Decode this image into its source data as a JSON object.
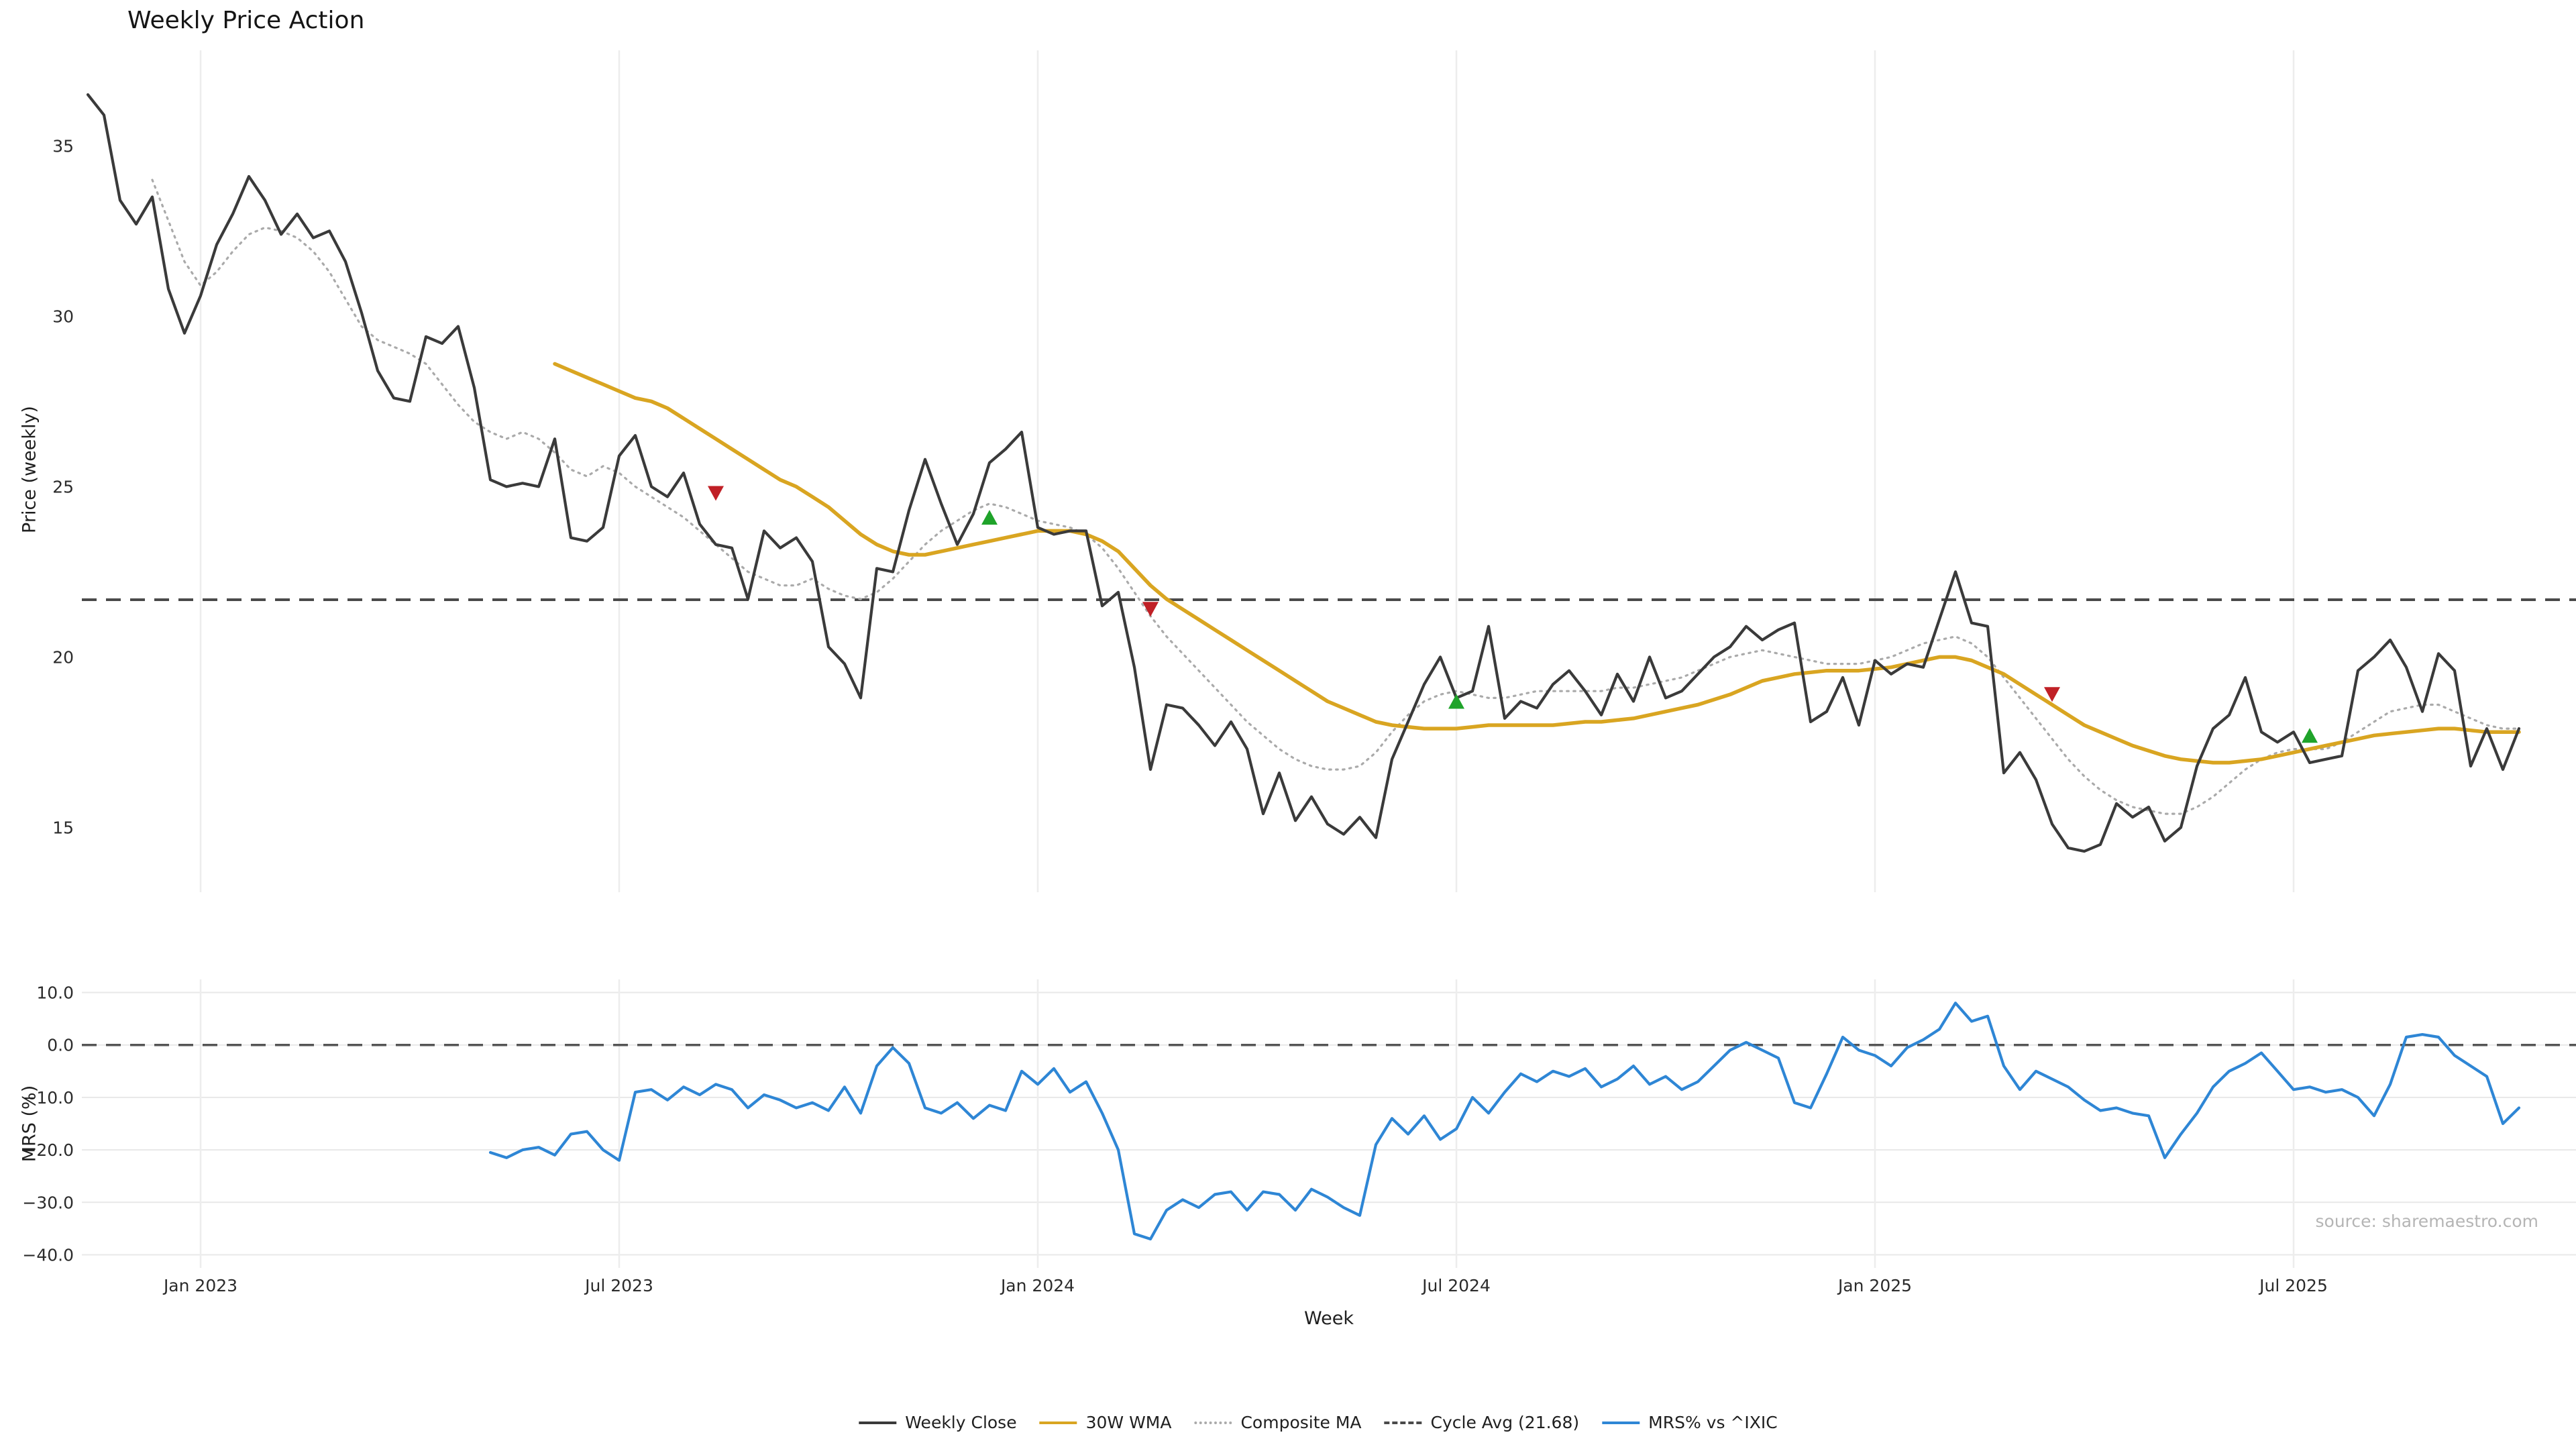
{
  "source": "source: sharemaestro.com",
  "colors": {
    "close": "#3a3a3a",
    "wma": "#d9a521",
    "composite": "#aaaaaa",
    "cycle_avg": "#4a4a4a",
    "mrs": "#2e86d5",
    "buy": "#1fa32a",
    "sell": "#c02026",
    "grid_vertical": "#ededed",
    "grid_horizontal": "#e8e8e8",
    "tick_text": "#2b2b2b",
    "zero_line": "#555555"
  },
  "legend": {
    "items": [
      {
        "label": "Weekly Close",
        "color": "#3a3a3a",
        "style": "solid"
      },
      {
        "label": "30W WMA",
        "color": "#d9a521",
        "style": "solid"
      },
      {
        "label": "Composite MA",
        "color": "#aaaaaa",
        "style": "dotted"
      },
      {
        "label": "Cycle Avg (21.68)",
        "color": "#4a4a4a",
        "style": "dashed"
      },
      {
        "label": "MRS% vs ^IXIC",
        "color": "#2e86d5",
        "style": "solid"
      }
    ]
  },
  "chart_data": [
    {
      "type": "line",
      "title": "Weekly Price Action",
      "ylabel": "Price (weekly)",
      "ylim": [
        13.1,
        37.8
      ],
      "grid": "vertical-only",
      "cycle_avg": 21.68,
      "x_ticks": [
        {
          "week": 7,
          "label": "Jan 2023"
        },
        {
          "week": 33,
          "label": "Jul 2023"
        },
        {
          "week": 59,
          "label": "Jan 2024"
        },
        {
          "week": 85,
          "label": "Jul 2024"
        },
        {
          "week": 111,
          "label": "Jan 2025"
        },
        {
          "week": 137,
          "label": "Jul 2025"
        }
      ],
      "y_ticks": [
        {
          "value": 15,
          "label": "15"
        },
        {
          "value": 20,
          "label": "20"
        },
        {
          "value": 25,
          "label": "25"
        },
        {
          "value": 30,
          "label": "30"
        },
        {
          "value": 35,
          "label": "35"
        }
      ],
      "series": [
        {
          "name": "Weekly Close",
          "start_week": 0,
          "values": [
            36.5,
            35.9,
            33.4,
            32.7,
            33.5,
            30.8,
            29.5,
            30.6,
            32.1,
            33.0,
            34.1,
            33.4,
            32.4,
            33.0,
            32.3,
            32.5,
            31.6,
            30.1,
            28.4,
            27.6,
            27.5,
            29.4,
            29.2,
            29.7,
            27.9,
            25.2,
            25.0,
            25.1,
            25.0,
            26.4,
            23.5,
            23.4,
            23.8,
            25.9,
            26.5,
            25.0,
            24.7,
            25.4,
            23.9,
            23.3,
            23.2,
            21.7,
            23.7,
            23.2,
            23.5,
            22.8,
            20.3,
            19.8,
            18.8,
            22.6,
            22.5,
            24.3,
            25.8,
            24.5,
            23.3,
            24.2,
            25.7,
            26.1,
            26.6,
            23.8,
            23.6,
            23.7,
            23.7,
            21.5,
            21.9,
            19.7,
            16.7,
            18.6,
            18.5,
            18.0,
            17.4,
            18.1,
            17.3,
            15.4,
            16.6,
            15.2,
            15.9,
            15.1,
            14.8,
            15.3,
            14.7,
            17.0,
            18.1,
            19.2,
            20.0,
            18.8,
            19.0,
            20.9,
            18.2,
            18.7,
            18.5,
            19.2,
            19.6,
            19.0,
            18.3,
            19.5,
            18.7,
            20.0,
            18.8,
            19.0,
            19.5,
            20.0,
            20.3,
            20.9,
            20.5,
            20.8,
            21.0,
            18.1,
            18.4,
            19.4,
            18.0,
            19.9,
            19.5,
            19.8,
            19.7,
            21.1,
            22.5,
            21.0,
            20.9,
            16.6,
            17.2,
            16.4,
            15.1,
            14.4,
            14.3,
            14.5,
            15.7,
            15.3,
            15.6,
            14.6,
            15.0,
            16.8,
            17.9,
            18.3,
            19.4,
            17.8,
            17.5,
            17.8,
            16.9,
            17.0,
            17.1,
            19.6,
            20.0,
            20.5,
            19.7,
            18.4,
            20.1,
            19.6,
            16.8,
            17.9,
            16.7,
            17.9
          ]
        },
        {
          "name": "30W WMA",
          "start_week": 29,
          "values": [
            28.6,
            28.4,
            28.2,
            28.0,
            27.8,
            27.6,
            27.5,
            27.3,
            27.0,
            26.7,
            26.4,
            26.1,
            25.8,
            25.5,
            25.2,
            25.0,
            24.7,
            24.4,
            24.0,
            23.6,
            23.3,
            23.1,
            23.0,
            23.0,
            23.1,
            23.2,
            23.3,
            23.4,
            23.5,
            23.6,
            23.7,
            23.7,
            23.7,
            23.6,
            23.4,
            23.1,
            22.6,
            22.1,
            21.7,
            21.4,
            21.1,
            20.8,
            20.5,
            20.2,
            19.9,
            19.6,
            19.3,
            19.0,
            18.7,
            18.5,
            18.3,
            18.1,
            18.0,
            17.95,
            17.9,
            17.9,
            17.9,
            17.95,
            18.0,
            18.0,
            18.0,
            18.0,
            18.0,
            18.05,
            18.1,
            18.1,
            18.15,
            18.2,
            18.3,
            18.4,
            18.5,
            18.6,
            18.75,
            18.9,
            19.1,
            19.3,
            19.4,
            19.5,
            19.55,
            19.6,
            19.6,
            19.6,
            19.65,
            19.7,
            19.8,
            19.9,
            20.0,
            20.0,
            19.9,
            19.7,
            19.5,
            19.2,
            18.9,
            18.6,
            18.3,
            18.0,
            17.8,
            17.6,
            17.4,
            17.25,
            17.1,
            17.0,
            16.95,
            16.9,
            16.9,
            16.95,
            17.0,
            17.1,
            17.2,
            17.3,
            17.4,
            17.5,
            17.6,
            17.7,
            17.75,
            17.8,
            17.85,
            17.9,
            17.9,
            17.85,
            17.8,
            17.8,
            17.8
          ]
        },
        {
          "name": "Composite MA",
          "start_week": 4,
          "values": [
            34.0,
            32.8,
            31.6,
            30.9,
            31.3,
            31.9,
            32.4,
            32.6,
            32.5,
            32.3,
            31.9,
            31.3,
            30.5,
            29.7,
            29.3,
            29.1,
            28.9,
            28.6,
            28.0,
            27.4,
            26.9,
            26.6,
            26.4,
            26.6,
            26.4,
            26.0,
            25.5,
            25.3,
            25.6,
            25.4,
            25.0,
            24.7,
            24.4,
            24.1,
            23.7,
            23.3,
            22.9,
            22.5,
            22.3,
            22.1,
            22.1,
            22.3,
            22.0,
            21.8,
            21.7,
            21.9,
            22.3,
            22.8,
            23.3,
            23.7,
            24.0,
            24.3,
            24.5,
            24.4,
            24.2,
            24.0,
            23.9,
            23.8,
            23.6,
            23.2,
            22.6,
            21.9,
            21.2,
            20.6,
            20.1,
            19.6,
            19.1,
            18.6,
            18.1,
            17.7,
            17.3,
            17.0,
            16.8,
            16.7,
            16.7,
            16.8,
            17.2,
            17.8,
            18.3,
            18.7,
            18.9,
            19.0,
            18.9,
            18.8,
            18.8,
            18.9,
            19.0,
            19.0,
            19.0,
            19.0,
            19.0,
            19.1,
            19.1,
            19.2,
            19.3,
            19.4,
            19.6,
            19.8,
            20.0,
            20.1,
            20.2,
            20.1,
            20.0,
            19.9,
            19.8,
            19.8,
            19.8,
            19.9,
            20.0,
            20.2,
            20.4,
            20.5,
            20.6,
            20.4,
            20.0,
            19.4,
            18.8,
            18.2,
            17.6,
            17.0,
            16.5,
            16.1,
            15.8,
            15.6,
            15.5,
            15.4,
            15.4,
            15.6,
            15.9,
            16.3,
            16.7,
            17.0,
            17.2,
            17.3,
            17.3,
            17.3,
            17.5,
            17.8,
            18.1,
            18.4,
            18.5,
            18.6,
            18.6,
            18.4,
            18.2,
            18.0,
            17.9,
            17.9
          ]
        }
      ],
      "markers": {
        "sell": [
          {
            "week": 39,
            "price": 24.8
          },
          {
            "week": 66,
            "price": 21.4
          },
          {
            "week": 122,
            "price": 18.9
          }
        ],
        "buy": [
          {
            "week": 56,
            "price": 24.1
          },
          {
            "week": 85,
            "price": 18.7
          },
          {
            "week": 138,
            "price": 17.7
          }
        ]
      }
    },
    {
      "type": "line",
      "ylabel": "MRS (%)",
      "xlabel": "Week",
      "ylim": [
        -42.5,
        12.5
      ],
      "grid": "both",
      "zero_line": 0,
      "y_ticks": [
        {
          "value": -40,
          "label": "−40.0"
        },
        {
          "value": -30,
          "label": "−30.0"
        },
        {
          "value": -20,
          "label": "−20.0"
        },
        {
          "value": -10,
          "label": "−10.0"
        },
        {
          "value": 0,
          "label": "0.0"
        },
        {
          "value": 10,
          "label": "10.0"
        }
      ],
      "series": [
        {
          "name": "MRS% vs ^IXIC",
          "start_week": 25,
          "values": [
            -20.5,
            -21.5,
            -20.0,
            -19.5,
            -21.0,
            -17.0,
            -16.5,
            -20.0,
            -22.0,
            -9.0,
            -8.5,
            -10.5,
            -8.0,
            -9.5,
            -7.5,
            -8.5,
            -12.0,
            -9.5,
            -10.5,
            -12.0,
            -11.0,
            -12.5,
            -8.0,
            -13.0,
            -4.0,
            -0.5,
            -3.5,
            -12.0,
            -13.0,
            -11.0,
            -14.0,
            -11.5,
            -12.5,
            -5.0,
            -7.5,
            -4.5,
            -9.0,
            -7.0,
            -13.0,
            -20.0,
            -36.0,
            -37.0,
            -31.5,
            -29.5,
            -31.0,
            -28.5,
            -28.0,
            -31.5,
            -28.0,
            -28.5,
            -31.5,
            -27.5,
            -29.0,
            -31.0,
            -32.5,
            -19.0,
            -14.0,
            -17.0,
            -13.5,
            -18.0,
            -16.0,
            -10.0,
            -13.0,
            -9.0,
            -5.5,
            -7.0,
            -5.0,
            -6.0,
            -4.5,
            -8.0,
            -6.5,
            -4.0,
            -7.5,
            -6.0,
            -8.5,
            -7.0,
            -4.0,
            -1.0,
            0.5,
            -1.0,
            -2.5,
            -11.0,
            -12.0,
            -5.5,
            1.5,
            -1.0,
            -2.0,
            -4.0,
            -0.5,
            1.0,
            3.0,
            8.0,
            4.5,
            5.5,
            -4.0,
            -8.5,
            -5.0,
            -6.5,
            -8.0,
            -10.5,
            -12.5,
            -12.0,
            -13.0,
            -13.5,
            -21.5,
            -17.0,
            -13.0,
            -8.0,
            -5.0,
            -3.5,
            -1.5,
            -5.0,
            -8.5,
            -8.0,
            -9.0,
            -8.5,
            -10.0,
            -13.5,
            -7.5,
            1.5,
            2.0,
            1.5,
            -2.0,
            -4.0,
            -6.0,
            -15.0,
            -12.0
          ]
        }
      ]
    }
  ]
}
